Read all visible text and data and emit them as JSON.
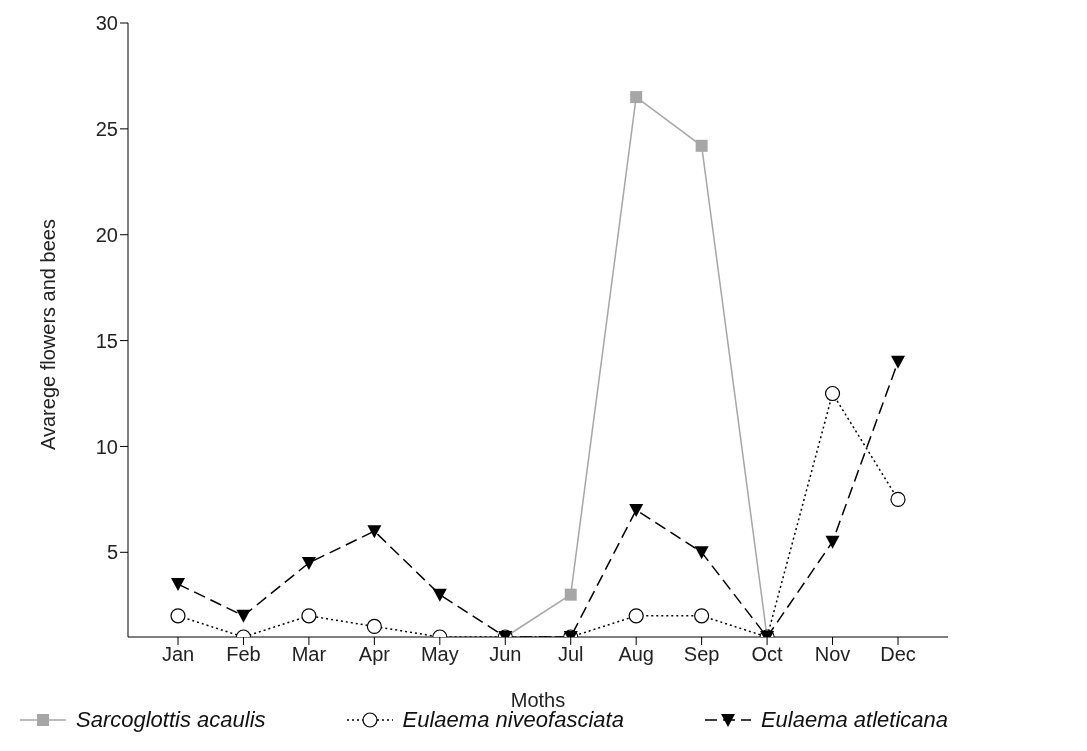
{
  "chart_data": {
    "type": "line",
    "xlabel": "Moths",
    "ylabel": "Avarege flowers and bees",
    "categories": [
      "Jan",
      "Feb",
      "Mar",
      "Apr",
      "May",
      "Jun",
      "Jul",
      "Aug",
      "Sep",
      "Oct",
      "Nov",
      "Dec"
    ],
    "ylim": [
      1,
      30
    ],
    "yticks": [
      5,
      10,
      15,
      20,
      25,
      30
    ],
    "grid": false,
    "legend": "bottom",
    "series": [
      {
        "name": "Sarcoglottis acaulis",
        "color": "#a6a6a6",
        "marker": "square",
        "line_style": "solid",
        "values": [
          null,
          null,
          null,
          null,
          null,
          1,
          3,
          26.5,
          24.2,
          1,
          null,
          null
        ]
      },
      {
        "name": "Eulaema niveofasciata",
        "color": "#000000",
        "marker": "circle",
        "line_style": "dotted",
        "values": [
          2,
          1,
          2,
          1.5,
          1,
          1,
          1,
          2,
          2,
          1,
          12.5,
          7.5
        ]
      },
      {
        "name": "Eulaema atleticana",
        "color": "#000000",
        "marker": "triangle",
        "line_style": "dashed",
        "values": [
          3.5,
          2,
          4.5,
          6,
          3,
          1,
          1,
          7,
          5,
          1,
          5.5,
          14
        ]
      }
    ]
  }
}
